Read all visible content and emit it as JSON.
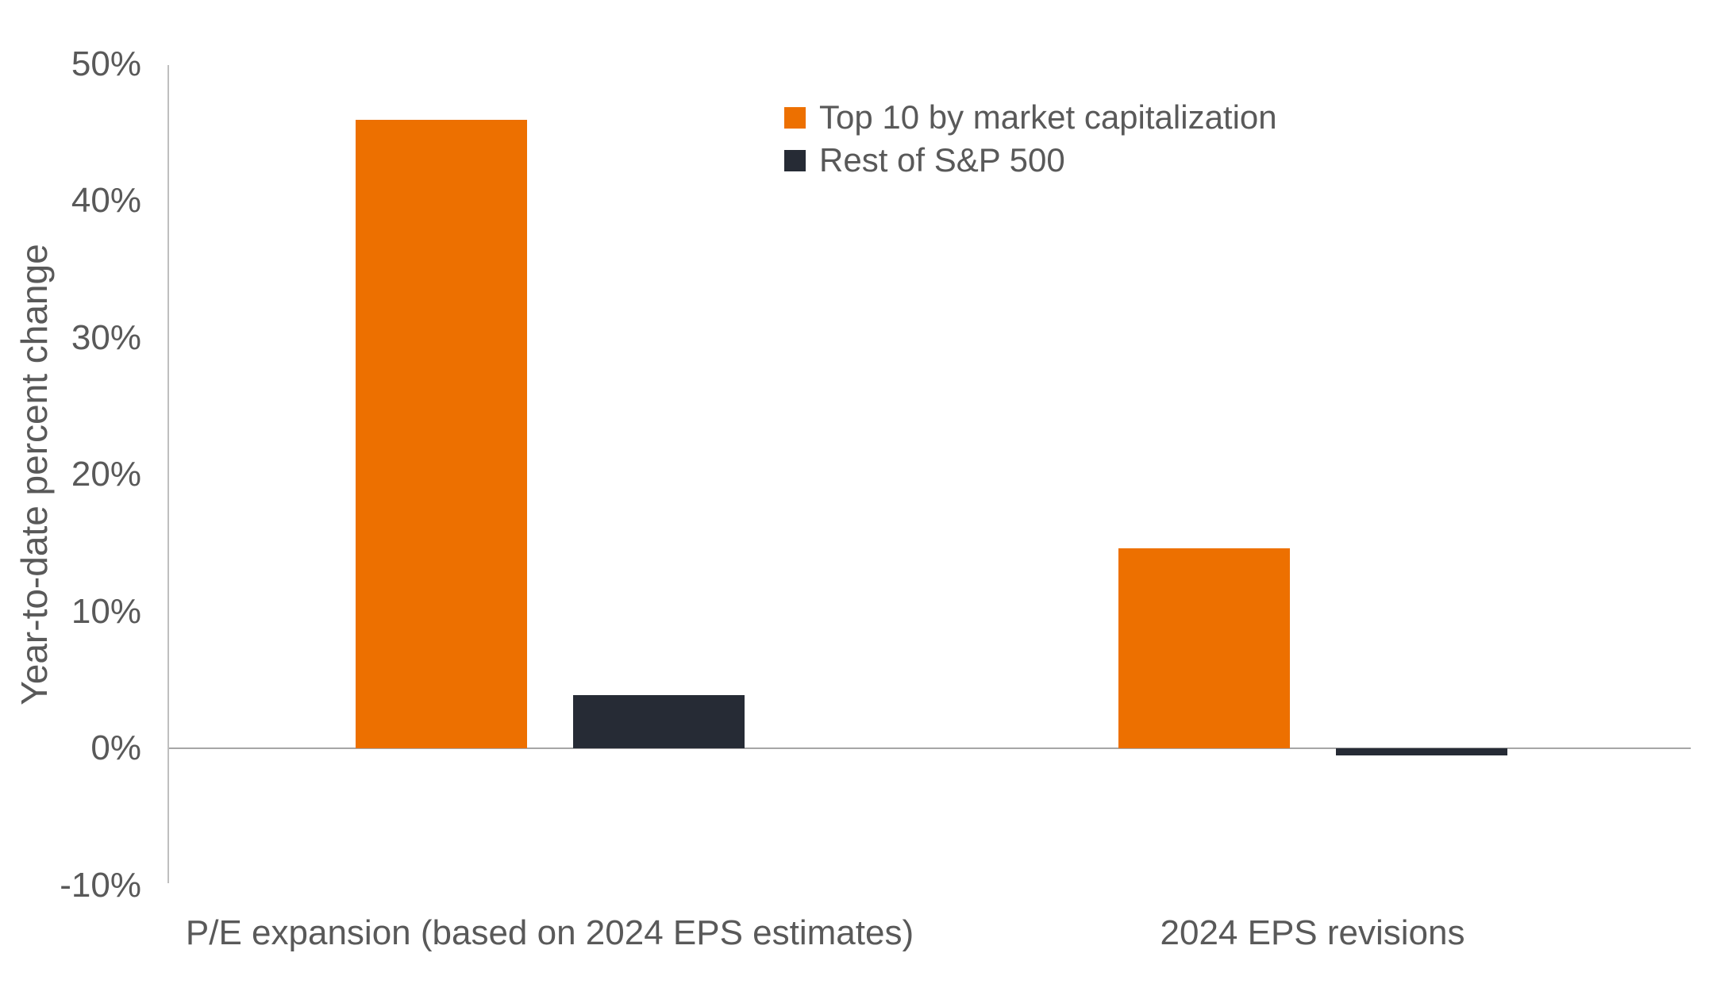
{
  "chart_data": {
    "type": "bar",
    "title": "",
    "ylabel": "Year-to-date percent change",
    "xlabel": "",
    "categories": [
      "P/E expansion (based on 2024 EPS estimates)",
      "2024 EPS revisions"
    ],
    "series": [
      {
        "name": "Top 10 by market capitalization",
        "color": "#ED7000",
        "values": [
          45.9,
          14.6
        ]
      },
      {
        "name": "Rest of S&P 500",
        "color": "#262B35",
        "values": [
          3.9,
          -0.5
        ]
      }
    ],
    "ylim": [
      -10,
      50
    ],
    "yticks": [
      {
        "value": 50,
        "label": "50%"
      },
      {
        "value": 40,
        "label": "40%"
      },
      {
        "value": 30,
        "label": "30%"
      },
      {
        "value": 20,
        "label": "20%"
      },
      {
        "value": 10,
        "label": "10%"
      },
      {
        "value": 0,
        "label": "0%"
      },
      {
        "value": -10,
        "label": "-10%"
      }
    ],
    "grid": false,
    "legend_position": "top-center"
  },
  "colors": {
    "axis_line": "#BFBFBF",
    "zero_line": "#A6A6A6",
    "text": "#595959",
    "background": "#FFFFFF"
  }
}
